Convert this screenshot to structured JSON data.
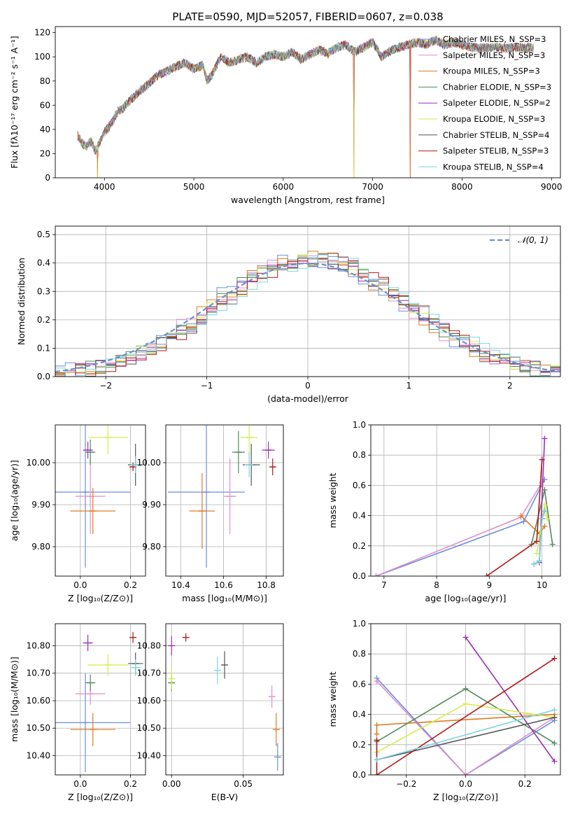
{
  "title": "PLATE=0590, MJD=52057, FIBERID=0607, z=0.038",
  "colors": {
    "chabrier_miles": "#6a8fe0",
    "salpeter_miles": "#e08fc8",
    "kroupa_miles": "#e07a20",
    "chabrier_elodie": "#4f8a5a",
    "salpeter_elodie": "#9a30b8",
    "kroupa_elodie": "#d4ee4a",
    "chabrier_stelib": "#555555",
    "salpeter_stelib": "#b01818",
    "kroupa_stelib": "#7ed4e0",
    "normal": "#6a8fd0",
    "grid": "#b0b0b0"
  },
  "chart_data": [
    {
      "id": "spectrum",
      "type": "line",
      "xlabel": "wavelength [Angstrom, rest frame]",
      "ylabel": "Flux [fλ10⁻¹⁷ erg cm⁻² s⁻¹ A⁻¹]",
      "xlim": [
        3450,
        9100
      ],
      "ylim": [
        0,
        125
      ],
      "xticks": [
        4000,
        5000,
        6000,
        7000,
        8000,
        9000
      ],
      "yticks": [
        0,
        20,
        40,
        60,
        80,
        100,
        120
      ],
      "grid": false,
      "legend_position": "right",
      "envelope": {
        "x": [
          3700,
          3750,
          3800,
          3850,
          3900,
          3950,
          4000,
          4050,
          4100,
          4150,
          4200,
          4300,
          4400,
          4500,
          4600,
          4700,
          4800,
          4900,
          5000,
          5100,
          5150,
          5200,
          5300,
          5400,
          5500,
          5600,
          5700,
          5800,
          5900,
          6000,
          6100,
          6200,
          6300,
          6400,
          6500,
          6600,
          6700,
          6800,
          6900,
          7000,
          7100,
          7200,
          7300,
          7400,
          7500,
          7600,
          7700,
          7800,
          7900,
          8000,
          8100,
          8200,
          8300,
          8400,
          8500,
          8600,
          8700,
          8800
        ],
        "y": [
          35,
          28,
          26,
          30,
          22,
          30,
          38,
          42,
          48,
          55,
          57,
          65,
          72,
          78,
          85,
          88,
          92,
          95,
          90,
          93,
          80,
          85,
          100,
          95,
          98,
          100,
          95,
          100,
          102,
          100,
          104,
          98,
          102,
          106,
          103,
          108,
          110,
          104,
          108,
          112,
          100,
          105,
          108,
          110,
          112,
          110,
          114,
          110,
          112,
          110,
          108,
          107,
          108,
          108,
          107,
          108,
          107,
          108
        ]
      },
      "spikes": [
        {
          "x": 3920,
          "y": 0
        },
        {
          "x": 6790,
          "y": 0
        },
        {
          "x": 7420,
          "y": 0
        }
      ],
      "legend": [
        "Chabrier MILES, N_SSP=3",
        "Salpeter MILES, N_SSP=3",
        "Kroupa MILES, N_SSP=3",
        "Chabrier ELODIE, N_SSP=3",
        "Salpeter ELODIE, N_SSP=2",
        "Kroupa ELODIE, N_SSP=3",
        "Chabrier STELIB, N_SSP=4",
        "Salpeter STELIB, N_SSP=3",
        "Kroupa STELIB, N_SSP=4"
      ]
    },
    {
      "id": "residuals",
      "type": "line",
      "xlabel": "(data-model)/error",
      "ylabel": "Normed distribution",
      "xlim": [
        -2.5,
        2.5
      ],
      "ylim": [
        0,
        0.53
      ],
      "xticks": [
        -2,
        -1,
        0,
        1,
        2
      ],
      "yticks": [
        0.0,
        0.1,
        0.2,
        0.3,
        0.4,
        0.5
      ],
      "grid": true,
      "legend": [
        "𝒩(0, 1)"
      ],
      "legend_position": "top-right",
      "bin_width": 0.1
    },
    {
      "id": "age_vs_Z",
      "type": "scatter",
      "xlabel": "Z [log₁₀(Z/Z⊙)]",
      "ylabel": "age  [log₁₀(age/yr)]",
      "xlim": [
        -0.1,
        0.26
      ],
      "ylim": [
        9.73,
        10.09
      ],
      "xticks": [
        0.0,
        0.2
      ],
      "yticks": [
        9.8,
        9.9,
        10.0
      ],
      "grid": true,
      "points": [
        {
          "model": "chabrier_miles",
          "x": 0.02,
          "y": 9.93,
          "xerr": 0.18,
          "yerr": 0.18
        },
        {
          "model": "salpeter_miles",
          "x": 0.04,
          "y": 9.92,
          "xerr": 0.06,
          "yerr": 0.09
        },
        {
          "model": "kroupa_miles",
          "x": 0.05,
          "y": 9.885,
          "xerr": 0.09,
          "yerr": 0.055
        },
        {
          "model": "chabrier_elodie",
          "x": 0.04,
          "y": 10.025,
          "xerr": 0.02,
          "yerr": 0.03
        },
        {
          "model": "salpeter_elodie",
          "x": 0.03,
          "y": 10.03,
          "xerr": 0.02,
          "yerr": 0.02
        },
        {
          "model": "kroupa_elodie",
          "x": 0.11,
          "y": 10.06,
          "xerr": 0.08,
          "yerr": 0.04
        },
        {
          "model": "chabrier_stelib",
          "x": 0.22,
          "y": 9.995,
          "xerr": 0.03,
          "yerr": 0.05
        },
        {
          "model": "salpeter_stelib",
          "x": 0.21,
          "y": 9.99,
          "xerr": 0.01,
          "yerr": 0.01
        },
        {
          "model": "kroupa_stelib",
          "x": 0.22,
          "y": 9.995,
          "xerr": 0.02,
          "yerr": 0.02
        }
      ]
    },
    {
      "id": "age_vs_mass",
      "type": "scatter",
      "xlabel": "mass [log₁₀(M/M⊙)]",
      "ylabel": "",
      "xlim": [
        10.33,
        10.88
      ],
      "ylim": [
        9.73,
        10.09
      ],
      "xticks": [
        10.4,
        10.6,
        10.8
      ],
      "yticks": [
        9.8,
        9.9,
        10.0
      ],
      "grid": true,
      "points": [
        {
          "model": "chabrier_miles",
          "x": 10.52,
          "y": 9.93,
          "xerr": 0.18,
          "yerr": 0.18
        },
        {
          "model": "salpeter_miles",
          "x": 10.63,
          "y": 9.92,
          "xerr": 0.03,
          "yerr": 0.09
        },
        {
          "model": "kroupa_miles",
          "x": 10.5,
          "y": 9.885,
          "xerr": 0.06,
          "yerr": 0.09
        },
        {
          "model": "chabrier_elodie",
          "x": 10.67,
          "y": 10.025,
          "xerr": 0.03,
          "yerr": 0.05
        },
        {
          "model": "salpeter_elodie",
          "x": 10.81,
          "y": 10.03,
          "xerr": 0.03,
          "yerr": 0.02
        },
        {
          "model": "kroupa_elodie",
          "x": 10.72,
          "y": 10.06,
          "xerr": 0.04,
          "yerr": 0.05
        },
        {
          "model": "chabrier_stelib",
          "x": 10.73,
          "y": 9.995,
          "xerr": 0.04,
          "yerr": 0.05
        },
        {
          "model": "salpeter_stelib",
          "x": 10.83,
          "y": 9.99,
          "xerr": 0.01,
          "yerr": 0.02
        },
        {
          "model": "kroupa_stelib",
          "x": 10.72,
          "y": 9.995,
          "xerr": 0.02,
          "yerr": 0.03
        }
      ]
    },
    {
      "id": "weight_vs_age",
      "type": "line",
      "xlabel": "age  [log₁₀(age/yr)]",
      "ylabel": "mass weight",
      "xlim": [
        6.75,
        10.35
      ],
      "ylim": [
        0,
        1.0
      ],
      "xticks": [
        7,
        8,
        9,
        10
      ],
      "yticks": [
        0.0,
        0.2,
        0.4,
        0.6,
        0.8,
        1.0
      ],
      "grid": true,
      "series": [
        {
          "model": "chabrier_miles",
          "x": [
            6.85,
            9.65,
            10.05
          ],
          "y": [
            0.0,
            0.36,
            0.64
          ]
        },
        {
          "model": "salpeter_miles",
          "x": [
            6.85,
            9.6,
            10.0
          ],
          "y": [
            0.0,
            0.39,
            0.62
          ]
        },
        {
          "model": "kroupa_miles",
          "x": [
            9.6,
            9.95,
            10.05
          ],
          "y": [
            0.4,
            0.28,
            0.33
          ]
        },
        {
          "model": "chabrier_elodie",
          "x": [
            9.8,
            10.05,
            10.2
          ],
          "y": [
            0.21,
            0.57,
            0.21
          ]
        },
        {
          "model": "salpeter_elodie",
          "x": [
            9.95,
            10.05
          ],
          "y": [
            0.09,
            0.91
          ]
        },
        {
          "model": "kroupa_elodie",
          "x": [
            9.9,
            10.05,
            10.1
          ],
          "y": [
            0.15,
            0.47,
            0.38
          ]
        },
        {
          "model": "chabrier_stelib",
          "x": [
            9.85,
            9.95,
            10.0,
            10.05
          ],
          "y": [
            0.08,
            0.1,
            0.38,
            0.43
          ]
        },
        {
          "model": "salpeter_stelib",
          "x": [
            8.95,
            9.9,
            10.0
          ],
          "y": [
            0.0,
            0.23,
            0.77
          ]
        },
        {
          "model": "kroupa_stelib",
          "x": [
            9.85,
            9.95,
            10.0,
            10.05
          ],
          "y": [
            0.08,
            0.1,
            0.38,
            0.43
          ]
        }
      ]
    },
    {
      "id": "mass_vs_Z",
      "type": "scatter",
      "xlabel": "Z [log₁₀(Z/Z⊙)]",
      "ylabel": "mass [log₁₀(M/M⊙)]",
      "xlim": [
        -0.1,
        0.26
      ],
      "ylim": [
        10.33,
        10.88
      ],
      "xticks": [
        0.0,
        0.2
      ],
      "yticks": [
        10.4,
        10.5,
        10.6,
        10.7,
        10.8
      ],
      "grid": true,
      "points": [
        {
          "model": "chabrier_miles",
          "x": 0.02,
          "y": 10.52,
          "xerr": 0.18,
          "yerr": 0.18
        },
        {
          "model": "salpeter_miles",
          "x": 0.04,
          "y": 10.625,
          "xerr": 0.06,
          "yerr": 0.04
        },
        {
          "model": "kroupa_miles",
          "x": 0.05,
          "y": 10.495,
          "xerr": 0.09,
          "yerr": 0.06
        },
        {
          "model": "chabrier_elodie",
          "x": 0.04,
          "y": 10.665,
          "xerr": 0.02,
          "yerr": 0.03
        },
        {
          "model": "salpeter_elodie",
          "x": 0.03,
          "y": 10.81,
          "xerr": 0.02,
          "yerr": 0.03
        },
        {
          "model": "kroupa_elodie",
          "x": 0.11,
          "y": 10.73,
          "xerr": 0.08,
          "yerr": 0.04
        },
        {
          "model": "chabrier_stelib",
          "x": 0.22,
          "y": 10.735,
          "xerr": 0.03,
          "yerr": 0.04
        },
        {
          "model": "salpeter_stelib",
          "x": 0.21,
          "y": 10.83,
          "xerr": 0.01,
          "yerr": 0.02
        },
        {
          "model": "kroupa_stelib",
          "x": 0.22,
          "y": 10.72,
          "xerr": 0.02,
          "yerr": 0.03
        }
      ]
    },
    {
      "id": "mass_vs_ebv",
      "type": "scatter",
      "xlabel": "E(B-V)",
      "ylabel": "",
      "xlim": [
        -0.004,
        0.078
      ],
      "ylim": [
        10.33,
        10.88
      ],
      "xticks": [
        0.0,
        0.05
      ],
      "yticks": [
        10.4,
        10.5,
        10.6,
        10.7,
        10.8
      ],
      "grid": true,
      "points": [
        {
          "model": "chabrier_miles",
          "x": 0.074,
          "y": 10.395,
          "xerr": 0,
          "yerr": 0.05
        },
        {
          "model": "salpeter_miles",
          "x": 0.07,
          "y": 10.615,
          "xerr": 0,
          "yerr": 0.04
        },
        {
          "model": "kroupa_miles",
          "x": 0.073,
          "y": 10.495,
          "xerr": 0,
          "yerr": 0.06
        },
        {
          "model": "chabrier_elodie",
          "x": 0.0,
          "y": 10.665,
          "xerr": 0,
          "yerr": 0.03
        },
        {
          "model": "salpeter_elodie",
          "x": 0.0,
          "y": 10.8,
          "xerr": 0,
          "yerr": 0.035
        },
        {
          "model": "kroupa_elodie",
          "x": 0.0,
          "y": 10.68,
          "xerr": 0,
          "yerr": 0.04
        },
        {
          "model": "chabrier_stelib",
          "x": 0.037,
          "y": 10.73,
          "xerr": 0,
          "yerr": 0.05
        },
        {
          "model": "salpeter_stelib",
          "x": 0.01,
          "y": 10.83,
          "xerr": 0,
          "yerr": 0.015
        },
        {
          "model": "kroupa_stelib",
          "x": 0.032,
          "y": 10.71,
          "xerr": 0,
          "yerr": 0.05
        }
      ]
    },
    {
      "id": "weight_vs_Z",
      "type": "line",
      "xlabel": "Z [log₁₀(Z/Z⊙)]",
      "ylabel": "mass weight",
      "xlim": [
        -0.32,
        0.32
      ],
      "ylim": [
        0,
        1.0
      ],
      "xticks": [
        -0.2,
        0.0,
        0.2
      ],
      "yticks": [
        0.0,
        0.2,
        0.4,
        0.6,
        0.8,
        1.0
      ],
      "grid": true,
      "series": [
        {
          "model": "chabrier_miles",
          "x": [
            -0.3,
            0.0,
            0.3
          ],
          "y": [
            0.64,
            0.0,
            0.36
          ]
        },
        {
          "model": "salpeter_miles",
          "x": [
            -0.3,
            0.0,
            0.3
          ],
          "y": [
            0.62,
            0.0,
            0.38
          ]
        },
        {
          "model": "kroupa_miles",
          "x": [
            -0.3,
            -0.3,
            0.3
          ],
          "y": [
            0.27,
            0.33,
            0.4
          ]
        },
        {
          "model": "chabrier_elodie",
          "x": [
            -0.3,
            0.0,
            0.3
          ],
          "y": [
            0.22,
            0.57,
            0.21
          ]
        },
        {
          "model": "salpeter_elodie",
          "x": [
            0.0,
            0.3
          ],
          "y": [
            0.91,
            0.09
          ]
        },
        {
          "model": "kroupa_elodie",
          "x": [
            -0.3,
            0.0,
            0.3
          ],
          "y": [
            0.15,
            0.47,
            0.38
          ]
        },
        {
          "model": "chabrier_stelib",
          "x": [
            -0.3,
            0.3
          ],
          "y": [
            0.1,
            0.38
          ]
        },
        {
          "model": "salpeter_stelib",
          "x": [
            -0.3,
            -0.3,
            0.3
          ],
          "y": [
            0.23,
            0.0,
            0.77
          ]
        },
        {
          "model": "kroupa_stelib",
          "x": [
            -0.3,
            0.3
          ],
          "y": [
            0.1,
            0.43
          ]
        }
      ]
    }
  ]
}
